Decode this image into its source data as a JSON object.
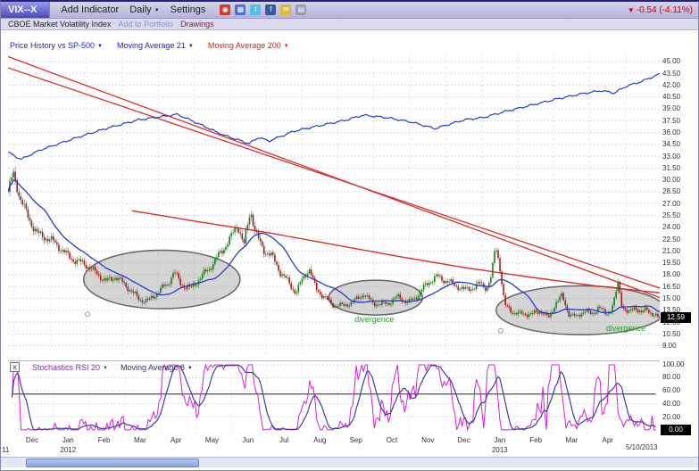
{
  "window": {
    "symbol": "VIX--X",
    "change_text": "-0.54 (-4.11%)",
    "change_color": "#cc0000"
  },
  "toolbar": {
    "add_indicator": "Add Indicator",
    "period": "Daily",
    "settings": "Settings",
    "icons": [
      {
        "name": "snapshot-icon",
        "color": "#cf3b2c",
        "glyph": "◉"
      },
      {
        "name": "chart-share-icon",
        "color": "#4a6fd4",
        "glyph": "▦"
      },
      {
        "name": "twitter-icon",
        "color": "#55c0ea",
        "glyph": "t"
      },
      {
        "name": "facebook-icon",
        "color": "#3b5998",
        "glyph": "f"
      },
      {
        "name": "email-icon",
        "color": "#d9b93a",
        "glyph": "✉"
      },
      {
        "name": "print-icon",
        "color": "#9a9ab0",
        "glyph": "▤"
      }
    ]
  },
  "subbar": {
    "index_name": "CBOE Market Volatility Index",
    "add_to_portfolio": "Add to Portfolio",
    "drawings": "Drawings"
  },
  "main_legend": {
    "price_history": "Price History vs SP-500",
    "ma21": "Moving Average 21",
    "ma200": "Moving Average 200"
  },
  "stoch_legend": {
    "close": "x",
    "stoch": "Stochastics RSI 20",
    "ma8": "Moving Average 8"
  },
  "glyphs": {
    "caret": "▼",
    "down_arrow": "▼"
  },
  "axes": {
    "price_ticks": [
      "45.00",
      "43.50",
      "42.00",
      "40.50",
      "39.00",
      "37.50",
      "36.00",
      "34.50",
      "33.00",
      "31.50",
      "30.00",
      "28.50",
      "27.00",
      "25.50",
      "24.00",
      "22.50",
      "21.00",
      "19.50",
      "18.00",
      "16.50",
      "15.00",
      "13.50",
      "12.00",
      "10.50",
      "9.00"
    ],
    "price_badge": "12.59",
    "stoch_ticks": [
      "100.00",
      "80.00",
      "60.00",
      "40.00",
      "20.00"
    ],
    "stoch_badge": "0.00",
    "months": [
      "Dec",
      "Jan",
      "Feb",
      "Mar",
      "Apr",
      "May",
      "Jun",
      "Jul",
      "Aug",
      "Sep",
      "Oct",
      "Nov",
      "Dec",
      "Jan",
      "Feb",
      "Mar",
      "Apr"
    ],
    "years": [
      {
        "label": "2012",
        "month_index": 1
      },
      {
        "label": "2013",
        "month_index": 13
      }
    ],
    "partial_year": "11",
    "end_date": "5/10/2013"
  },
  "colors": {
    "candle_up": "#1b7e1b",
    "candle_down": "#9c2020",
    "sp500": "#2a3ad0",
    "ma21": "#2a3ad0",
    "ma200": "#d93030",
    "trendline": "#d93030",
    "stoch": "#d81ed8",
    "stoch_ma": "#3d3da0",
    "annotation": "#2c9a2c",
    "change": "#cc0000",
    "legend_price": "#2222cc",
    "legend_ma21": "#2222cc",
    "legend_ma200": "#cc2222",
    "legend_stoch": "#7733aa",
    "legend_stoch_ma": "#333366",
    "portfolio_link": "#8595c5",
    "drawings_link": "#8b2525"
  },
  "chart_data": {
    "type": "candlestick",
    "title": "VIX--X Price History vs SP-500, Daily",
    "ylim": [
      7.6,
      46.0
    ],
    "x_range": [
      "Dec 2011",
      "5/10/2013"
    ],
    "last_price": 12.59,
    "bars": 360,
    "vix_close_anchors": [
      [
        0.0,
        28.5
      ],
      [
        0.008,
        30.5
      ],
      [
        0.018,
        27.5
      ],
      [
        0.03,
        25.5
      ],
      [
        0.045,
        23.5
      ],
      [
        0.06,
        22.5
      ],
      [
        0.08,
        21.2
      ],
      [
        0.1,
        20.2
      ],
      [
        0.115,
        19.4
      ],
      [
        0.13,
        18.3
      ],
      [
        0.15,
        17.4
      ],
      [
        0.165,
        17.9
      ],
      [
        0.18,
        16.4
      ],
      [
        0.2,
        15.0
      ],
      [
        0.215,
        14.9
      ],
      [
        0.23,
        15.7
      ],
      [
        0.245,
        16.6
      ],
      [
        0.255,
        18.4
      ],
      [
        0.265,
        17.1
      ],
      [
        0.28,
        16.3
      ],
      [
        0.295,
        17.3
      ],
      [
        0.31,
        18.9
      ],
      [
        0.325,
        21.0
      ],
      [
        0.34,
        22.4
      ],
      [
        0.352,
        24.0
      ],
      [
        0.362,
        21.6
      ],
      [
        0.372,
        26.4
      ],
      [
        0.38,
        23.6
      ],
      [
        0.392,
        21.2
      ],
      [
        0.405,
        20.1
      ],
      [
        0.418,
        18.1
      ],
      [
        0.43,
        17.3
      ],
      [
        0.442,
        15.9
      ],
      [
        0.452,
        17.5
      ],
      [
        0.462,
        18.5
      ],
      [
        0.472,
        16.1
      ],
      [
        0.485,
        15.3
      ],
      [
        0.5,
        14.3
      ],
      [
        0.515,
        13.9
      ],
      [
        0.53,
        14.4
      ],
      [
        0.545,
        15.8
      ],
      [
        0.558,
        14.7
      ],
      [
        0.572,
        14.0
      ],
      [
        0.585,
        14.3
      ],
      [
        0.6,
        15.4
      ],
      [
        0.615,
        14.6
      ],
      [
        0.63,
        15.3
      ],
      [
        0.645,
        16.9
      ],
      [
        0.658,
        18.0
      ],
      [
        0.672,
        17.4
      ],
      [
        0.685,
        16.5
      ],
      [
        0.7,
        15.9
      ],
      [
        0.712,
        16.5
      ],
      [
        0.724,
        17.1
      ],
      [
        0.735,
        16.3
      ],
      [
        0.742,
        17.6
      ],
      [
        0.748,
        21.5
      ],
      [
        0.754,
        19.2
      ],
      [
        0.762,
        14.1
      ],
      [
        0.775,
        13.5
      ],
      [
        0.79,
        13.0
      ],
      [
        0.805,
        12.8
      ],
      [
        0.818,
        13.4
      ],
      [
        0.83,
        12.7
      ],
      [
        0.84,
        14.6
      ],
      [
        0.85,
        15.2
      ],
      [
        0.86,
        12.9
      ],
      [
        0.872,
        12.5
      ],
      [
        0.884,
        13.7
      ],
      [
        0.896,
        13.1
      ],
      [
        0.906,
        13.9
      ],
      [
        0.916,
        12.8
      ],
      [
        0.924,
        13.2
      ],
      [
        0.93,
        14.6
      ],
      [
        0.936,
        17.0
      ],
      [
        0.942,
        14.4
      ],
      [
        0.952,
        13.2
      ],
      [
        0.962,
        13.9
      ],
      [
        0.972,
        12.9
      ],
      [
        0.98,
        13.5
      ],
      [
        0.99,
        13.0
      ],
      [
        1.0,
        12.6
      ]
    ],
    "sp500_anchors": [
      [
        0.0,
        33.5
      ],
      [
        0.02,
        32.6
      ],
      [
        0.05,
        33.8
      ],
      [
        0.1,
        35.2
      ],
      [
        0.15,
        36.5
      ],
      [
        0.2,
        37.6
      ],
      [
        0.26,
        38.3
      ],
      [
        0.29,
        37.2
      ],
      [
        0.33,
        35.7
      ],
      [
        0.37,
        34.6
      ],
      [
        0.385,
        35.4
      ],
      [
        0.4,
        34.9
      ],
      [
        0.44,
        36.2
      ],
      [
        0.48,
        36.9
      ],
      [
        0.52,
        37.6
      ],
      [
        0.545,
        38.2
      ],
      [
        0.58,
        37.9
      ],
      [
        0.62,
        37.3
      ],
      [
        0.655,
        36.5
      ],
      [
        0.7,
        37.6
      ],
      [
        0.73,
        37.9
      ],
      [
        0.76,
        38.6
      ],
      [
        0.8,
        39.4
      ],
      [
        0.84,
        40.2
      ],
      [
        0.88,
        40.9
      ],
      [
        0.91,
        41.3
      ],
      [
        0.93,
        41.0
      ],
      [
        0.95,
        41.9
      ],
      [
        0.97,
        42.4
      ],
      [
        1.0,
        43.4
      ]
    ],
    "ma200_anchors": [
      [
        0.19,
        26.1
      ],
      [
        0.3,
        24.6
      ],
      [
        0.4,
        23.3
      ],
      [
        0.5,
        21.8
      ],
      [
        0.6,
        20.3
      ],
      [
        0.7,
        18.9
      ],
      [
        0.8,
        17.7
      ],
      [
        0.9,
        16.6
      ],
      [
        1.0,
        15.7
      ]
    ],
    "trendlines": [
      {
        "x1": 0.0,
        "v1": 45.6,
        "x2": 1.0,
        "v2": 15.1
      },
      {
        "x1": 0.0,
        "v1": 44.2,
        "x2": 1.0,
        "v2": 16.3
      }
    ],
    "ellipses": [
      {
        "t": 0.236,
        "v": 17.4,
        "rt": 0.12,
        "rv": 3.7
      },
      {
        "t": 0.564,
        "v": 15.1,
        "rt": 0.072,
        "rv": 2.2
      },
      {
        "t": 0.879,
        "v": 13.5,
        "rt": 0.13,
        "rv": 3.1
      }
    ],
    "annotations": [
      {
        "text": "divergence",
        "t": 0.562,
        "v": 12.0
      },
      {
        "text": "divergence",
        "t": 0.948,
        "v": 10.9
      }
    ],
    "markers": [
      {
        "t": 0.122,
        "v": 13.0
      },
      {
        "t": 0.756,
        "v": 10.9
      }
    ],
    "stoch": {
      "lookback": 20,
      "ma": 8,
      "ylim": [
        0,
        100
      ],
      "hline": 55
    }
  }
}
